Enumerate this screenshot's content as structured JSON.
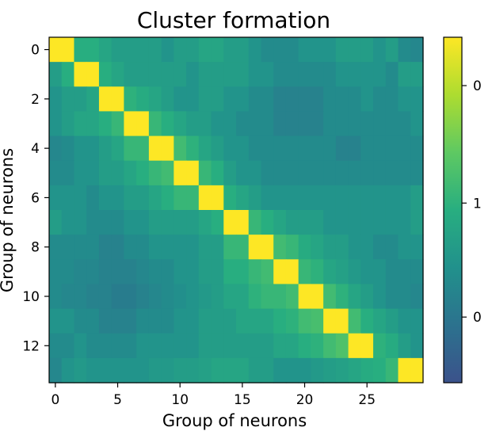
{
  "chart_data": {
    "type": "heatmap",
    "title": "Cluster formation",
    "xlabel": "Group of neurons",
    "ylabel": "Group of neurons",
    "n_cols": 30,
    "n_rows": 14,
    "x_ticks": [
      0,
      5,
      10,
      15,
      20,
      25
    ],
    "x_tick_labels": [
      "0",
      "5",
      "10",
      "15",
      "20",
      "25"
    ],
    "y_ticks": [
      0,
      2,
      4,
      6,
      8,
      10,
      12
    ],
    "y_tick_labels": [
      "0",
      "2",
      "4",
      "6",
      "8",
      "10",
      "12"
    ],
    "colorbar_ticks": [
      {
        "label": "0",
        "level": 0.86
      },
      {
        "label": "1",
        "level": 0.52
      },
      {
        "label": "0",
        "level": 0.19
      }
    ],
    "colormap": [
      "#3b528b",
      "#2c728e",
      "#21918c",
      "#28ae80",
      "#5ec962",
      "#addc30",
      "#fde725"
    ],
    "diagonal_value": 1.0,
    "values": [
      [
        1.0,
        1.0,
        0.5,
        0.5,
        0.45,
        0.4,
        0.4,
        0.4,
        0.4,
        0.35,
        0.4,
        0.4,
        0.45,
        0.45,
        0.4,
        0.4,
        0.35,
        0.3,
        0.3,
        0.3,
        0.35,
        0.35,
        0.35,
        0.4,
        0.4,
        0.4,
        0.35,
        0.4,
        0.3,
        0.28
      ],
      [
        0.4,
        0.5,
        1.0,
        1.0,
        0.5,
        0.45,
        0.4,
        0.4,
        0.4,
        0.4,
        0.4,
        0.35,
        0.4,
        0.4,
        0.4,
        0.4,
        0.35,
        0.35,
        0.3,
        0.3,
        0.3,
        0.3,
        0.3,
        0.35,
        0.35,
        0.35,
        0.35,
        0.3,
        0.4,
        0.4
      ],
      [
        0.35,
        0.4,
        0.4,
        0.45,
        1.0,
        1.0,
        0.52,
        0.48,
        0.45,
        0.4,
        0.35,
        0.35,
        0.4,
        0.4,
        0.35,
        0.35,
        0.3,
        0.3,
        0.25,
        0.25,
        0.25,
        0.25,
        0.3,
        0.3,
        0.3,
        0.35,
        0.3,
        0.3,
        0.35,
        0.35
      ],
      [
        0.35,
        0.4,
        0.45,
        0.45,
        0.5,
        0.55,
        1.0,
        1.0,
        0.55,
        0.5,
        0.45,
        0.4,
        0.4,
        0.35,
        0.35,
        0.3,
        0.3,
        0.3,
        0.25,
        0.25,
        0.25,
        0.25,
        0.3,
        0.3,
        0.3,
        0.3,
        0.3,
        0.3,
        0.3,
        0.35
      ],
      [
        0.28,
        0.3,
        0.35,
        0.35,
        0.4,
        0.45,
        0.55,
        0.55,
        1.0,
        1.0,
        0.58,
        0.52,
        0.45,
        0.4,
        0.35,
        0.35,
        0.3,
        0.3,
        0.3,
        0.3,
        0.3,
        0.3,
        0.3,
        0.25,
        0.25,
        0.3,
        0.3,
        0.3,
        0.3,
        0.3
      ],
      [
        0.3,
        0.3,
        0.35,
        0.35,
        0.4,
        0.4,
        0.45,
        0.5,
        0.55,
        0.58,
        1.0,
        1.0,
        0.55,
        0.5,
        0.4,
        0.35,
        0.35,
        0.3,
        0.3,
        0.3,
        0.3,
        0.3,
        0.3,
        0.3,
        0.3,
        0.3,
        0.3,
        0.3,
        0.3,
        0.3
      ],
      [
        0.35,
        0.35,
        0.35,
        0.3,
        0.35,
        0.35,
        0.4,
        0.4,
        0.45,
        0.5,
        0.55,
        0.55,
        1.0,
        1.0,
        0.5,
        0.45,
        0.4,
        0.35,
        0.35,
        0.35,
        0.35,
        0.35,
        0.35,
        0.35,
        0.35,
        0.35,
        0.35,
        0.35,
        0.35,
        0.4
      ],
      [
        0.4,
        0.35,
        0.35,
        0.3,
        0.3,
        0.3,
        0.35,
        0.35,
        0.4,
        0.4,
        0.4,
        0.4,
        0.45,
        0.5,
        1.0,
        1.0,
        0.55,
        0.5,
        0.45,
        0.4,
        0.4,
        0.4,
        0.35,
        0.35,
        0.35,
        0.35,
        0.35,
        0.35,
        0.35,
        0.4
      ],
      [
        0.3,
        0.3,
        0.3,
        0.3,
        0.25,
        0.25,
        0.3,
        0.3,
        0.35,
        0.35,
        0.35,
        0.35,
        0.4,
        0.4,
        0.55,
        0.55,
        1.0,
        1.0,
        0.58,
        0.55,
        0.48,
        0.45,
        0.4,
        0.4,
        0.35,
        0.35,
        0.3,
        0.3,
        0.35,
        0.35
      ],
      [
        0.3,
        0.3,
        0.28,
        0.28,
        0.25,
        0.25,
        0.25,
        0.28,
        0.3,
        0.3,
        0.35,
        0.35,
        0.4,
        0.4,
        0.5,
        0.5,
        0.55,
        0.58,
        1.0,
        1.0,
        0.55,
        0.52,
        0.45,
        0.42,
        0.38,
        0.35,
        0.35,
        0.3,
        0.3,
        0.3
      ],
      [
        0.3,
        0.28,
        0.28,
        0.25,
        0.25,
        0.22,
        0.22,
        0.25,
        0.28,
        0.3,
        0.32,
        0.35,
        0.38,
        0.4,
        0.45,
        0.45,
        0.52,
        0.55,
        0.55,
        0.58,
        1.0,
        1.0,
        0.58,
        0.52,
        0.45,
        0.4,
        0.35,
        0.3,
        0.3,
        0.28
      ],
      [
        0.35,
        0.35,
        0.3,
        0.3,
        0.25,
        0.25,
        0.25,
        0.3,
        0.3,
        0.3,
        0.35,
        0.35,
        0.4,
        0.4,
        0.4,
        0.45,
        0.45,
        0.45,
        0.5,
        0.52,
        0.58,
        0.6,
        1.0,
        1.0,
        0.58,
        0.5,
        0.45,
        0.4,
        0.35,
        0.35
      ],
      [
        0.3,
        0.3,
        0.35,
        0.3,
        0.3,
        0.3,
        0.3,
        0.35,
        0.35,
        0.35,
        0.35,
        0.35,
        0.4,
        0.4,
        0.4,
        0.4,
        0.4,
        0.4,
        0.45,
        0.45,
        0.5,
        0.52,
        0.58,
        0.62,
        1.0,
        1.0,
        0.52,
        0.48,
        0.4,
        0.35
      ],
      [
        0.28,
        0.35,
        0.38,
        0.35,
        0.35,
        0.35,
        0.35,
        0.35,
        0.38,
        0.38,
        0.4,
        0.4,
        0.42,
        0.45,
        0.45,
        0.45,
        0.4,
        0.4,
        0.35,
        0.35,
        0.35,
        0.38,
        0.4,
        0.42,
        0.45,
        0.48,
        0.5,
        0.55,
        1.0,
        1.0
      ]
    ]
  }
}
